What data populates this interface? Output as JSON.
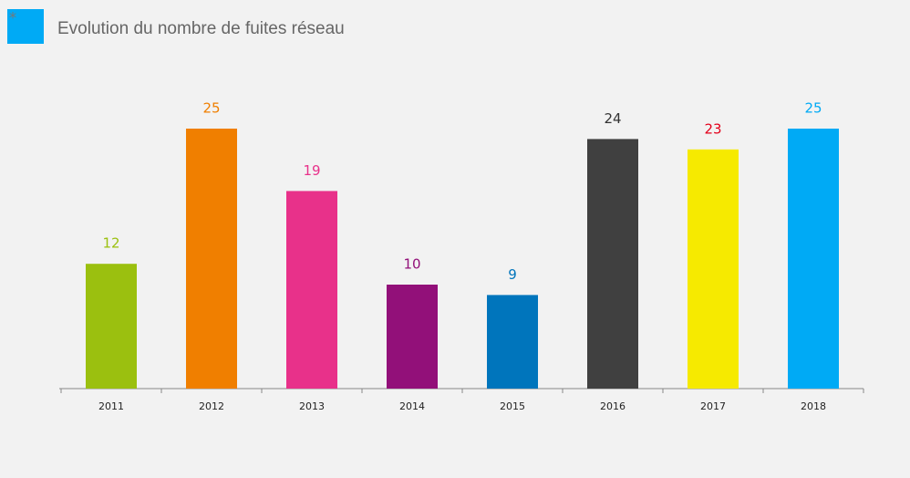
{
  "chart_data": {
    "type": "bar",
    "bullet": "*",
    "title": "Evolution du nombre de fuites réseau",
    "categories": [
      "2011",
      "2012",
      "2013",
      "2014",
      "2015",
      "2016",
      "2017",
      "2018"
    ],
    "values": [
      12,
      25,
      19,
      10,
      9,
      24,
      23,
      25
    ],
    "colors": [
      "#9bc00f",
      "#f07f00",
      "#e8318a",
      "#921079",
      "#0075bc",
      "#404040",
      "#f6ea00",
      "#00aaf5"
    ],
    "label_colors": [
      "#9bc00f",
      "#f07f00",
      "#e8318a",
      "#921079",
      "#0075bc",
      "#333333",
      "#e3001b",
      "#00aaf5"
    ],
    "ylim": [
      0,
      30
    ]
  }
}
